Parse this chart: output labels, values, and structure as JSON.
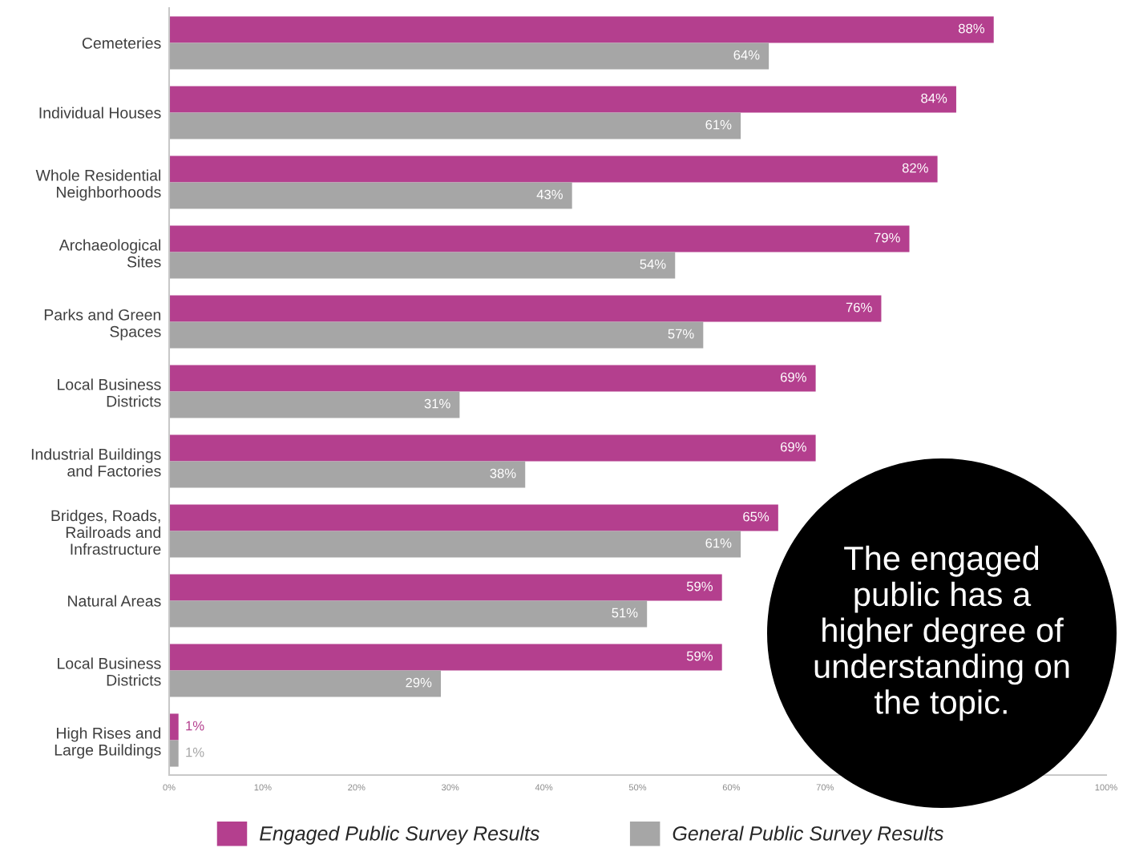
{
  "chart_data": {
    "type": "bar",
    "orientation": "horizontal",
    "categories": [
      "Cemeteries",
      "Individual Houses",
      "Whole Residential\nNeighborhoods",
      "Archaeological\nSites",
      "Parks and Green\nSpaces",
      "Local Business\nDistricts",
      "Industrial Buildings\nand Factories",
      "Bridges, Roads,\nRailroads and\nInfrastructure",
      "Natural Areas",
      "Local Business\nDistricts",
      "High Rises and\nLarge Buildings"
    ],
    "series": [
      {
        "name": "Engaged Public Survey Results",
        "color": "#b43f8e",
        "values": [
          88,
          84,
          82,
          79,
          76,
          69,
          69,
          65,
          59,
          59,
          1
        ],
        "value_labels": [
          "88%",
          "84%",
          "82%",
          "79%",
          "76%",
          "69%",
          "69%",
          "65%",
          "59%",
          "59%",
          "1%"
        ]
      },
      {
        "name": "General Public Survey Results",
        "color": "#a6a6a6",
        "values": [
          64,
          61,
          43,
          54,
          57,
          31,
          38,
          61,
          51,
          29,
          1
        ],
        "value_labels": [
          "64%",
          "61%",
          "43%",
          "54%",
          "57%",
          "31%",
          "38%",
          "61%",
          "51%",
          "29%",
          "1%"
        ]
      }
    ],
    "xlim": [
      0,
      100
    ],
    "xticks": [
      {
        "value": 0,
        "label": "0%"
      },
      {
        "value": 10,
        "label": "10%"
      },
      {
        "value": 20,
        "label": "20%"
      },
      {
        "value": 30,
        "label": "30%"
      },
      {
        "value": 40,
        "label": "40%"
      },
      {
        "value": 50,
        "label": "50%"
      },
      {
        "value": 60,
        "label": "60%"
      },
      {
        "value": 70,
        "label": "70%"
      },
      {
        "value": 100,
        "label": "100%"
      }
    ],
    "annotations": [
      "The engaged\npublic has a\nhigher degree of\nunderstanding on\nthe topic."
    ],
    "legend": "bottom",
    "grid": false
  }
}
